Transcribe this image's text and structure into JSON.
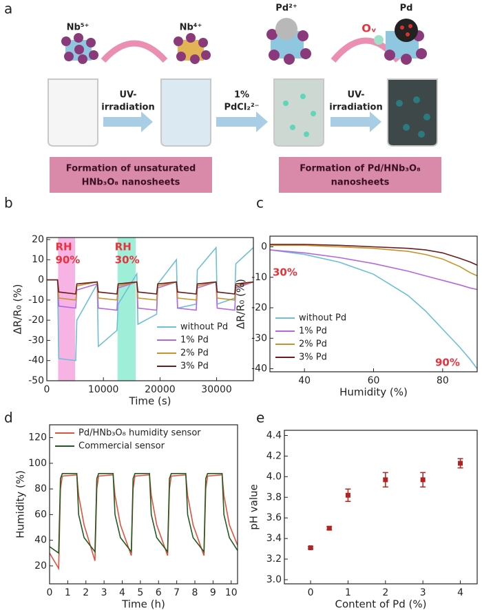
{
  "diagram": {
    "panel_label": "a",
    "ions": [
      "Nb⁵⁺",
      "Nb⁴⁺",
      "Pd²⁺",
      "Pd",
      "Oᵥ"
    ],
    "arrow_labels": [
      [
        "UV-",
        "irradiation"
      ],
      [
        "1%",
        "PdCl₂²⁻"
      ],
      [
        "UV-",
        "irradiation"
      ]
    ],
    "boxes": [
      [
        "Formation of unsaturated",
        "HNb₃O₈ nanosheets"
      ],
      [
        "Formation of Pd/HNb₃O₈",
        "nanosheets"
      ]
    ]
  },
  "chart_data": [
    {
      "type": "line",
      "panel_label": "b",
      "x_label": "Time (s)",
      "y_label": "ΔR/R₀ (%)",
      "x": [
        0,
        1900,
        2100,
        5100,
        5300,
        8900,
        9100,
        12400,
        12600,
        15900,
        16100,
        19400,
        19600,
        22900,
        23100,
        26400,
        26600,
        29900,
        30100,
        33200,
        33400,
        36500
      ],
      "series": [
        {
          "name": "without Pd",
          "color": "#6bbfd6",
          "values": [
            0,
            0,
            -39,
            -40,
            -20,
            -2,
            -33,
            -25,
            -12,
            3,
            -22,
            -17,
            -2,
            10,
            -14,
            -12,
            5,
            16,
            -12,
            -9,
            8,
            16
          ]
        },
        {
          "name": "1% Pd",
          "color": "#b466e0",
          "values": [
            0,
            0,
            -13,
            -14,
            -5,
            -2,
            -14,
            -15,
            -4,
            -1,
            -14,
            -15,
            -4,
            -1,
            -14,
            -15,
            -4,
            -1,
            -14,
            -15,
            -4,
            -1
          ]
        },
        {
          "name": "2% Pd",
          "color": "#c8912a",
          "values": [
            0,
            0,
            -9,
            -10,
            -3,
            -1,
            -9,
            -10,
            -3,
            -1,
            -9,
            -10,
            -3,
            -1,
            -9,
            -10,
            -3,
            -1,
            -9,
            -10,
            -3,
            -1
          ]
        },
        {
          "name": "3% Pd",
          "color": "#6b1a1a",
          "values": [
            0,
            0,
            -6,
            -7,
            -2,
            -1,
            -6,
            -7,
            -2,
            -1,
            -6,
            -7,
            -2,
            -1,
            -6,
            -7,
            -2,
            -1,
            -6,
            -7,
            -2,
            -1
          ]
        }
      ],
      "spans": [
        {
          "x": [
            2000,
            5000
          ],
          "color": "#f7b3e3",
          "text": [
            "RH",
            "90%"
          ]
        },
        {
          "x": [
            12500,
            15700
          ],
          "color": "#9fefd8",
          "text": [
            "RH",
            "30%"
          ]
        }
      ],
      "annotation_color": "#e8323c",
      "xlim": [
        0,
        36500
      ],
      "ylim": [
        -50,
        21
      ],
      "xticks": [
        0,
        10000,
        20000,
        30000
      ],
      "yticks": [
        -50,
        -40,
        -30,
        -20,
        -10,
        0,
        10,
        20
      ],
      "legend": "lower right"
    },
    {
      "type": "line",
      "panel_label": "c",
      "x_label": "Humidity (%)",
      "y_label": "ΔR/R₀ (%)",
      "x": [
        30,
        40,
        50,
        60,
        70,
        75,
        80,
        85,
        88,
        90
      ],
      "series": [
        {
          "name": "without Pd",
          "color": "#6bbfd6",
          "values": [
            -1,
            -2.5,
            -5,
            -9,
            -16,
            -21,
            -27,
            -33,
            -37,
            -40
          ]
        },
        {
          "name": "1% Pd",
          "color": "#b466e0",
          "values": [
            -1,
            -2,
            -3.5,
            -5.5,
            -8,
            -9.5,
            -11,
            -12.5,
            -13.5,
            -14
          ]
        },
        {
          "name": "2% Pd",
          "color": "#c8912a",
          "values": [
            0.5,
            0.5,
            0,
            -0.5,
            -1.5,
            -2.5,
            -4,
            -6.5,
            -8.5,
            -9.5
          ]
        },
        {
          "name": "3% Pd",
          "color": "#6b1a1a",
          "values": [
            0.8,
            0.8,
            0.5,
            0,
            -0.5,
            -1,
            -2,
            -3.8,
            -5,
            -6
          ]
        }
      ],
      "annotations": [
        "30%",
        "90%"
      ],
      "annotation_color": "#e8323c",
      "xlim": [
        30,
        90
      ],
      "ylim": [
        -41,
        3.5
      ],
      "xticks": [
        40,
        60,
        80
      ],
      "yticks": [
        -40,
        -30,
        -20,
        -10,
        0
      ],
      "legend": "lower left"
    },
    {
      "type": "line",
      "panel_label": "d",
      "x_label": "Time (h)",
      "y_label": "Humidity (%)",
      "x": [
        0,
        0.5,
        0.6,
        0.7,
        1.5,
        1.6,
        1.9,
        2.5,
        2.6,
        2.7,
        3.5,
        3.6,
        3.9,
        4.5,
        4.6,
        4.7,
        5.5,
        5.6,
        5.9,
        6.5,
        6.6,
        6.7,
        7.5,
        7.6,
        7.9,
        8.5,
        8.6,
        8.7,
        9.5,
        9.6,
        9.9,
        10.35
      ],
      "series": [
        {
          "name": "Pd/HNb₃O₈  humidity sensor",
          "color": "#e0503a",
          "values": [
            30,
            18,
            80,
            90,
            91,
            75,
            52,
            24,
            80,
            90,
            91,
            75,
            52,
            28,
            80,
            90,
            91,
            75,
            52,
            28,
            80,
            90,
            91,
            75,
            52,
            28,
            80,
            90,
            91,
            75,
            52,
            36
          ]
        },
        {
          "name": "Commercial sensor",
          "color": "#1f5a1f",
          "values": [
            35,
            30,
            88,
            92,
            92,
            60,
            42,
            31,
            88,
            92,
            92,
            60,
            42,
            31,
            88,
            92,
            92,
            60,
            42,
            31,
            88,
            92,
            92,
            60,
            42,
            31,
            88,
            92,
            92,
            60,
            42,
            32
          ]
        }
      ],
      "xlim": [
        0,
        10.35
      ],
      "ylim": [
        6,
        130
      ],
      "xticks": [
        0,
        1,
        2,
        3,
        4,
        5,
        6,
        7,
        8,
        9,
        10
      ],
      "yticks": [
        20,
        40,
        60,
        80,
        100,
        120
      ],
      "legend": "upper left"
    },
    {
      "type": "scatter",
      "panel_label": "e",
      "x_label": "Content of Pd (%)",
      "y_label": "pH value",
      "x": [
        0,
        0.5,
        1,
        2,
        3,
        4
      ],
      "values": [
        3.31,
        3.5,
        3.82,
        3.97,
        3.97,
        4.13
      ],
      "errors": [
        0.01,
        0.015,
        0.06,
        0.07,
        0.07,
        0.045
      ],
      "color": "#b22222",
      "xlim": [
        -0.7,
        4.45
      ],
      "ylim": [
        2.96,
        4.45
      ],
      "xticks": [
        0,
        1,
        2,
        3,
        4
      ],
      "yticks": [
        {
          "value": 3.0,
          "label": "3.0"
        },
        3.2,
        3.4,
        3.6,
        3.8,
        {
          "value": 4.0,
          "label": "4.0"
        },
        4.2,
        4.4
      ]
    }
  ]
}
